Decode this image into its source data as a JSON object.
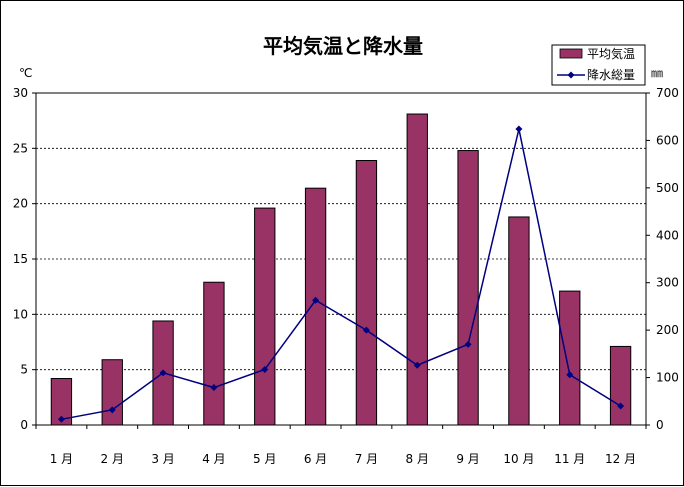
{
  "chart_data": {
    "type": "bar+line",
    "title": "平均気温と降水量",
    "categories": [
      "1 月",
      "2 月",
      "3 月",
      "4 月",
      "5 月",
      "6 月",
      "7 月",
      "8 月",
      "9 月",
      "10 月",
      "11 月",
      "12 月"
    ],
    "series": [
      {
        "name": "平均気温",
        "type": "bar",
        "axis": "left",
        "color": "#993366",
        "values": [
          4.2,
          5.9,
          9.4,
          12.9,
          19.6,
          21.4,
          23.9,
          28.1,
          24.8,
          18.8,
          12.1,
          7.1
        ]
      },
      {
        "name": "降水総量",
        "type": "line",
        "axis": "right",
        "color": "#000080",
        "values": [
          12,
          32,
          110,
          79,
          117,
          263,
          200,
          126,
          170,
          624,
          106,
          40
        ]
      }
    ],
    "y_left": {
      "unit": "℃",
      "min": 0,
      "max": 30,
      "ticks": [
        "0",
        "5",
        "10",
        "15",
        "20",
        "25",
        "30"
      ]
    },
    "y_right": {
      "unit": "㎜",
      "min": 0,
      "max": 700,
      "ticks": [
        "0",
        "100",
        "200",
        "300",
        "400",
        "500",
        "600",
        "700"
      ]
    },
    "grid": "horizontal-dashed",
    "legend": "top-right"
  }
}
